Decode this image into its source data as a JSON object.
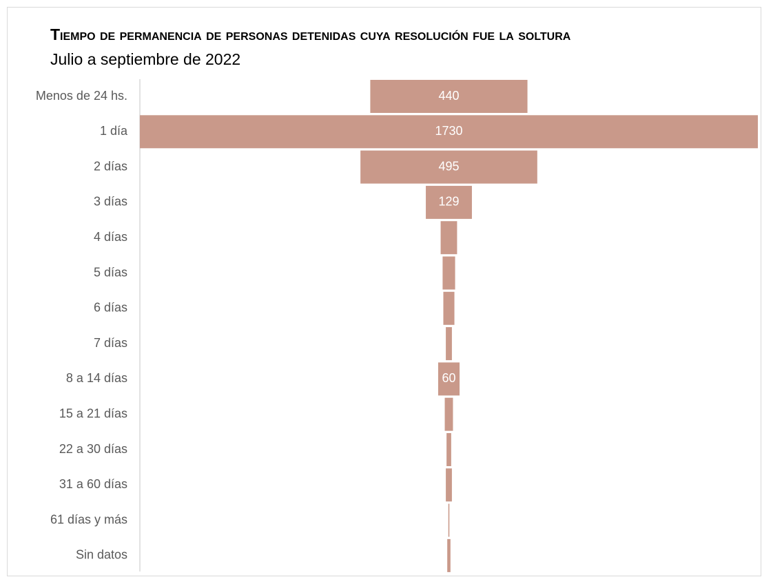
{
  "chart_data": {
    "type": "funnel",
    "title": "Tiempo de permanencia de personas detenidas cuya resolución fue la soltura",
    "subtitle": "Julio a septiembre de 2022",
    "categories": [
      "Menos de 24 hs.",
      "1 día",
      "2 días",
      "3 días",
      "4 días",
      "5 días",
      "6 días",
      "7 días",
      "8 a 14 días",
      "15 a 21 días",
      "22 a 30 días",
      "31 a 60 días",
      "61 días y más",
      "Sin datos"
    ],
    "values": [
      440,
      1730,
      495,
      129,
      46,
      35,
      31,
      17,
      60,
      23,
      13,
      17,
      3,
      9
    ],
    "value_labels": [
      "440",
      "1730",
      "495",
      "129",
      null,
      null,
      null,
      null,
      "60",
      null,
      null,
      null,
      null,
      null
    ],
    "color": "#c9998a"
  }
}
